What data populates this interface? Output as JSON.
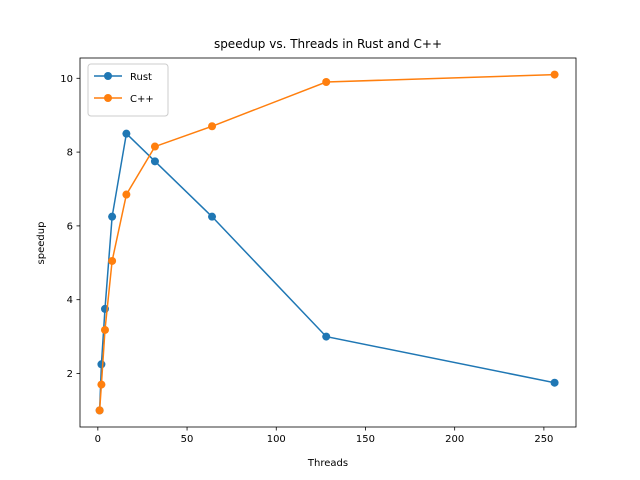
{
  "chart_data": {
    "type": "line",
    "title": "speedup vs. Threads in Rust and C++",
    "xlabel": "Threads",
    "ylabel": "speedup",
    "xlim": [
      -10,
      268
    ],
    "ylim": [
      0.55,
      10.55
    ],
    "xticks": [
      0,
      50,
      100,
      150,
      200,
      250
    ],
    "yticks": [
      2,
      4,
      6,
      8,
      10
    ],
    "grid": false,
    "legend": "top-left",
    "x": [
      1,
      2,
      4,
      8,
      16,
      32,
      64,
      128,
      256
    ],
    "series": [
      {
        "name": "Rust",
        "color": "#1f77b4",
        "values": [
          1.0,
          2.25,
          3.75,
          6.25,
          8.5,
          7.75,
          6.25,
          3.0,
          1.75
        ]
      },
      {
        "name": "C++",
        "color": "#ff7f0e",
        "values": [
          1.0,
          1.7,
          3.18,
          5.05,
          6.85,
          8.15,
          8.7,
          9.9,
          10.1
        ]
      }
    ]
  }
}
